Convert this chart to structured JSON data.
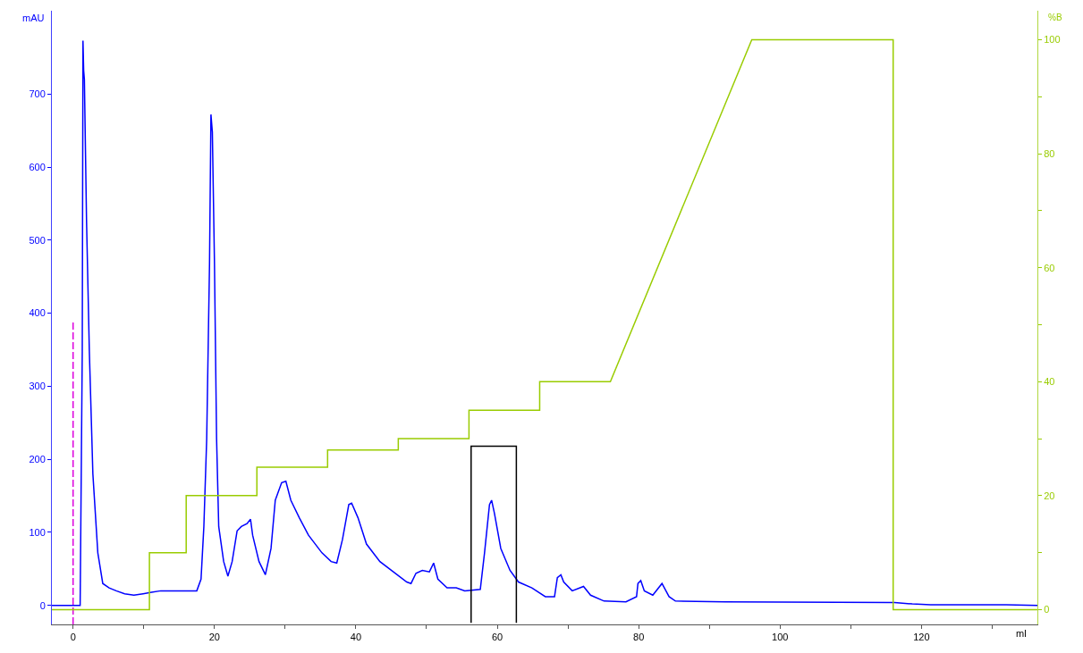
{
  "chart_data": {
    "type": "line",
    "xlabel": "ml",
    "ylabel": "mAU",
    "y2label": "%B",
    "xlim": [
      -3,
      136.4
    ],
    "xticks": [
      0,
      {
        "value": 10,
        "label": null
      },
      20,
      {
        "value": 30,
        "label": null
      },
      40,
      {
        "value": 50,
        "label": null
      },
      60,
      {
        "value": 70,
        "label": null
      },
      80,
      {
        "value": 90,
        "label": null
      },
      100,
      {
        "value": 110,
        "label": null
      },
      120,
      {
        "value": 130,
        "label": null
      }
    ],
    "ylim": [
      -26,
      814
    ],
    "yticks": [
      0,
      100,
      200,
      300,
      400,
      500,
      600,
      700
    ],
    "y2lim": [
      -2.6,
      105.1
    ],
    "y2ticks": [
      0,
      {
        "value": 10,
        "label": null
      },
      20,
      {
        "value": 30,
        "label": null
      },
      40,
      {
        "value": 50,
        "label": null
      },
      60,
      {
        "value": 70,
        "label": null
      },
      80,
      {
        "value": 90,
        "label": null
      },
      100
    ],
    "marker": "none",
    "series": [
      {
        "color": "#0000ff",
        "axis": "y",
        "x": [
          -3,
          1.0,
          1.3,
          1.4,
          1.5,
          1.6,
          1.9,
          2.3,
          2.8,
          3.5,
          4.2,
          5.1,
          6.1,
          7.3,
          8.6,
          9.9,
          11.1,
          12.4,
          14.9,
          17.5,
          18.1,
          18.5,
          18.9,
          19.3,
          19.5,
          19.7,
          20.0,
          20.3,
          20.6,
          21.3,
          21.9,
          22.5,
          23.2,
          23.8,
          24.6,
          25.1,
          25.4,
          26.3,
          27.2,
          28.0,
          28.6,
          29.5,
          30.1,
          30.8,
          32.0,
          33.3,
          35.2,
          36.5,
          37.3,
          38.1,
          39.0,
          39.4,
          40.3,
          41.5,
          43.4,
          45.3,
          47.2,
          47.8,
          48.5,
          49.4,
          50.4,
          51.0,
          51.6,
          52.9,
          54.2,
          55.4,
          57.6,
          58.2,
          58.9,
          59.2,
          59.6,
          60.5,
          61.8,
          63.0,
          64.9,
          66.8,
          68.1,
          68.5,
          69.0,
          69.4,
          70.6,
          72.2,
          73.2,
          75.1,
          78.2,
          79.7,
          79.9,
          80.3,
          80.8,
          82.0,
          83.3,
          84.3,
          85.2,
          92.2,
          116.2,
          118.7,
          121.3,
          132,
          136.4
        ],
        "values": [
          0,
          0,
          348,
          773,
          732,
          720,
          528,
          348,
          180,
          72,
          30,
          24,
          20,
          16,
          14,
          16,
          18,
          20,
          20,
          20,
          36,
          108,
          228,
          468,
          672,
          648,
          468,
          228,
          108,
          60,
          40,
          60,
          102,
          108,
          112,
          118,
          96,
          60,
          42,
          78,
          144,
          168,
          170,
          144,
          120,
          96,
          72,
          60,
          58,
          90,
          138,
          140,
          120,
          84,
          60,
          46,
          32,
          30,
          44,
          48,
          46,
          58,
          36,
          24,
          24,
          20,
          22,
          72,
          138,
          144,
          126,
          78,
          48,
          32,
          24,
          12,
          12,
          38,
          42,
          32,
          20,
          26,
          14,
          6,
          5,
          12,
          30,
          34,
          20,
          14,
          30,
          12,
          6,
          5,
          4,
          2,
          1,
          1,
          0
        ]
      },
      {
        "color": "#99cc00",
        "axis": "y2",
        "x": [
          -3,
          10.8,
          10.8,
          16,
          16,
          26,
          26,
          36,
          36,
          46,
          46,
          56,
          56,
          66,
          66,
          76,
          76,
          96,
          116,
          116,
          136.4
        ],
        "values": [
          0,
          0,
          10,
          10,
          20,
          20,
          25,
          25,
          28,
          28,
          30,
          30,
          35,
          35,
          40,
          40,
          40,
          100,
          100,
          0,
          0
        ]
      },
      {
        "color": "#dd00dd",
        "axis": "y",
        "line_style": "dashed",
        "x": [
          0,
          0
        ],
        "values": [
          -26,
          390
        ]
      },
      {
        "color": "#000000",
        "axis": "y",
        "x": [
          56.3,
          56.3,
          62.7,
          62.7
        ],
        "values": [
          -24,
          218,
          218,
          -24
        ]
      }
    ]
  }
}
